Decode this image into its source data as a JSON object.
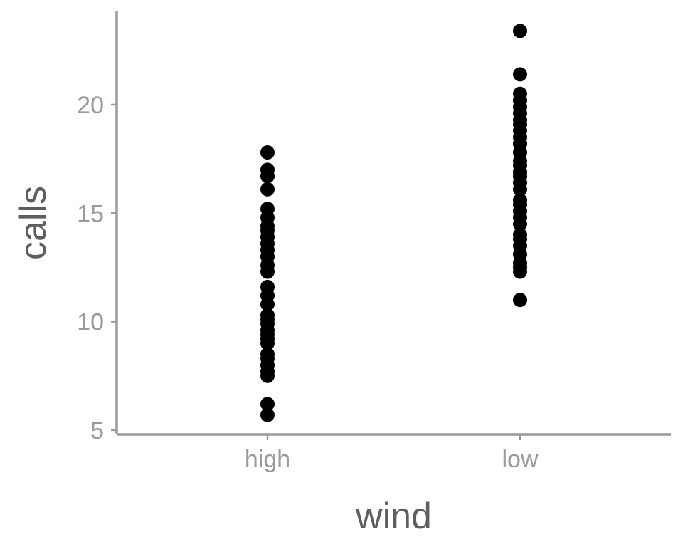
{
  "chart_data": {
    "type": "scatter",
    "title": "",
    "xlabel": "wind",
    "ylabel": "calls",
    "categories": [
      "high",
      "low"
    ],
    "x_ticks": [
      "high",
      "low"
    ],
    "y_ticks": [
      5,
      10,
      15,
      20
    ],
    "ylim": [
      4.8,
      24.3
    ],
    "grid": false,
    "legend": "none",
    "point_color": "#000000",
    "axis_color": "#9a9a9a",
    "series": [
      {
        "category": "high",
        "values": [
          5.7,
          6.2,
          7.5,
          7.7,
          8.0,
          8.3,
          8.5,
          9.0,
          9.2,
          9.4,
          9.6,
          9.9,
          10.1,
          10.3,
          10.8,
          11.2,
          11.6,
          12.3,
          12.6,
          13.0,
          13.3,
          13.6,
          13.9,
          14.2,
          14.4,
          14.8,
          15.2,
          16.1,
          16.7,
          17.0,
          17.8
        ]
      },
      {
        "category": "low",
        "values": [
          11.0,
          12.3,
          12.5,
          12.7,
          13.1,
          13.5,
          13.8,
          14.0,
          14.5,
          14.8,
          15.1,
          15.4,
          15.6,
          16.1,
          16.4,
          16.7,
          16.9,
          17.2,
          17.4,
          17.8,
          18.2,
          18.5,
          18.8,
          19.1,
          19.3,
          19.6,
          19.9,
          20.2,
          20.5,
          21.4,
          23.4
        ]
      }
    ]
  }
}
